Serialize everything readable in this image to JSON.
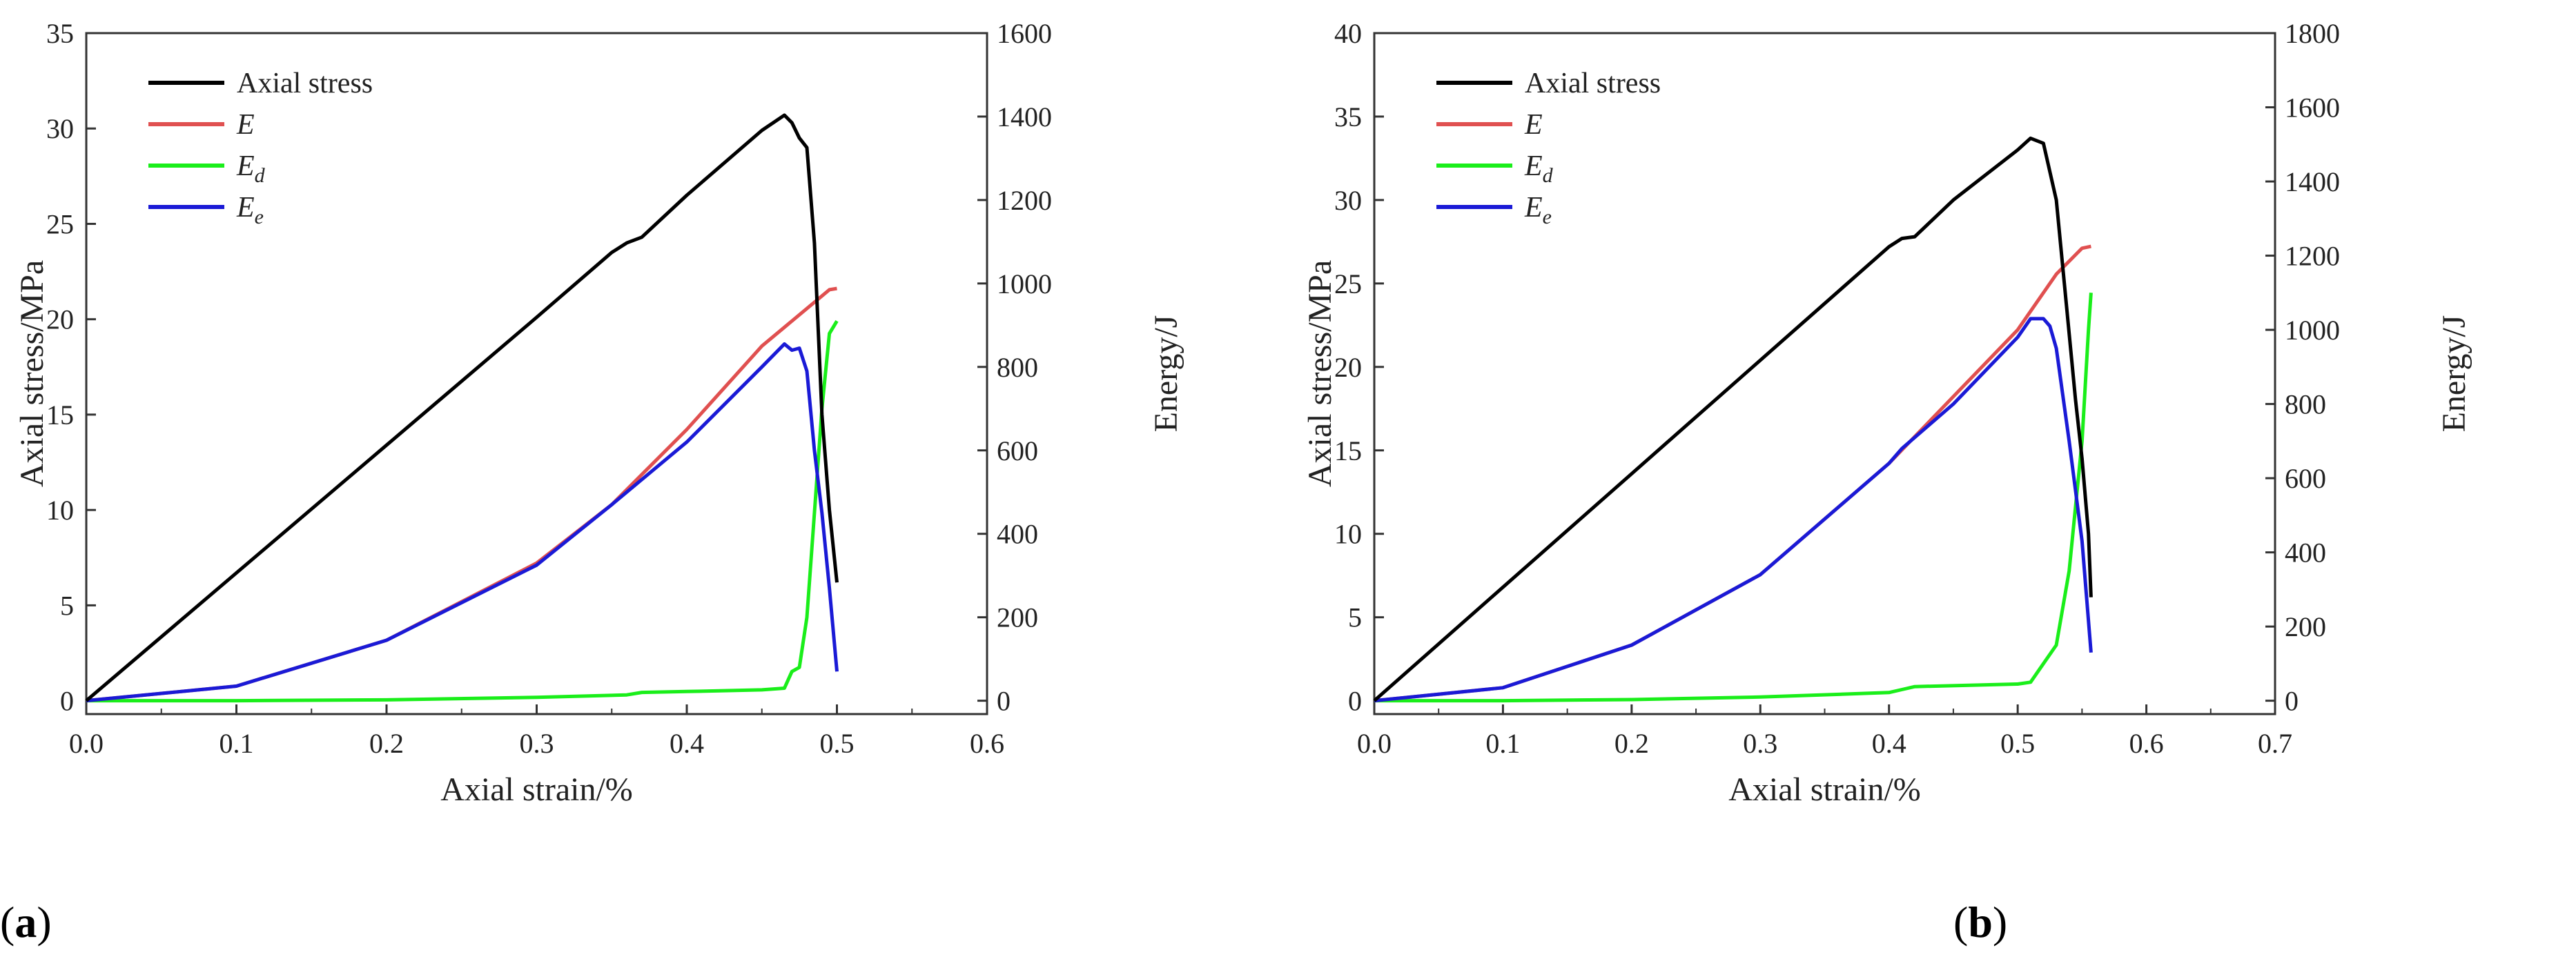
{
  "chart_data": [
    {
      "type": "line",
      "panel_label_open": "(",
      "panel_label": "a",
      "panel_label_close": ")",
      "xlabel": "Axial strain/%",
      "ylabel": "Axial stress/MPa",
      "y2label": "Energy/J",
      "xlim": [
        0,
        0.6
      ],
      "ylim": [
        -0.7,
        35
      ],
      "y2lim": [
        -32,
        1600
      ],
      "xticks": [
        "0.0",
        "0.1",
        "0.2",
        "0.3",
        "0.4",
        "0.5",
        "0.6"
      ],
      "yticks": [
        "0",
        "5",
        "10",
        "15",
        "20",
        "25",
        "30",
        "35"
      ],
      "y2ticks": [
        "0",
        "200",
        "400",
        "600",
        "800",
        "1000",
        "1200",
        "1400",
        "1600"
      ],
      "legend": {
        "position": "top-left",
        "entries": [
          "Axial stress",
          "E",
          "Ed",
          "Ee"
        ]
      },
      "series": [
        {
          "name": "Axial stress",
          "axis": "left",
          "color": "#000000",
          "x": [
            0,
            0.1,
            0.2,
            0.3,
            0.35,
            0.36,
            0.37,
            0.4,
            0.45,
            0.465,
            0.47,
            0.475,
            0.48,
            0.485,
            0.49,
            0.495,
            0.5
          ],
          "y": [
            0,
            6.7,
            13.4,
            20.1,
            23.5,
            24.0,
            24.3,
            26.5,
            29.9,
            30.7,
            30.3,
            29.5,
            29.0,
            24.0,
            15.0,
            10.0,
            6.2
          ]
        },
        {
          "name": "E",
          "axis": "right",
          "color": "#e05050",
          "x": [
            0,
            0.1,
            0.2,
            0.3,
            0.35,
            0.4,
            0.45,
            0.48,
            0.495,
            0.5
          ],
          "y": [
            0,
            35,
            145,
            330,
            470,
            650,
            850,
            940,
            985,
            988
          ]
        },
        {
          "name": "Ed",
          "axis": "right",
          "color": "#1aee1a",
          "x": [
            0,
            0.1,
            0.2,
            0.3,
            0.36,
            0.37,
            0.4,
            0.45,
            0.465,
            0.47,
            0.475,
            0.48,
            0.485,
            0.49,
            0.495,
            0.5
          ],
          "y": [
            0,
            0,
            2,
            8,
            14,
            20,
            22,
            26,
            30,
            70,
            80,
            200,
            450,
            700,
            880,
            910
          ]
        },
        {
          "name": "Ee",
          "axis": "right",
          "color": "#1a1ad6",
          "x": [
            0,
            0.1,
            0.2,
            0.3,
            0.35,
            0.4,
            0.45,
            0.465,
            0.47,
            0.475,
            0.48,
            0.485,
            0.49,
            0.495,
            0.5
          ],
          "y": [
            0,
            35,
            145,
            325,
            470,
            620,
            800,
            855,
            840,
            845,
            790,
            600,
            450,
            270,
            70
          ]
        }
      ]
    },
    {
      "type": "line",
      "panel_label_open": "(",
      "panel_label": "b",
      "panel_label_close": ")",
      "xlabel": "Axial strain/%",
      "ylabel": "Axial stress/MPa",
      "y2label": "Energy/J",
      "xlim": [
        0,
        0.7
      ],
      "ylim": [
        -0.8,
        40
      ],
      "y2lim": [
        -36,
        1800
      ],
      "xticks": [
        "0.0",
        "0.1",
        "0.2",
        "0.3",
        "0.4",
        "0.5",
        "0.6",
        "0.7"
      ],
      "yticks": [
        "0",
        "5",
        "10",
        "15",
        "20",
        "25",
        "30",
        "35",
        "40"
      ],
      "y2ticks": [
        "0",
        "200",
        "400",
        "600",
        "800",
        "1000",
        "1200",
        "1400",
        "1600",
        "1800"
      ],
      "legend": {
        "position": "top-left",
        "entries": [
          "Axial stress",
          "E",
          "Ed",
          "Ee"
        ]
      },
      "series": [
        {
          "name": "Axial stress",
          "axis": "left",
          "color": "#000000",
          "x": [
            0,
            0.1,
            0.2,
            0.3,
            0.4,
            0.41,
            0.42,
            0.45,
            0.5,
            0.51,
            0.52,
            0.53,
            0.54,
            0.545,
            0.55,
            0.555,
            0.557
          ],
          "y": [
            0,
            6.8,
            13.6,
            20.4,
            27.2,
            27.7,
            27.8,
            30.0,
            33.0,
            33.7,
            33.4,
            30.0,
            22.0,
            18.0,
            14.5,
            10.0,
            6.2
          ]
        },
        {
          "name": "E",
          "axis": "right",
          "color": "#e05050",
          "x": [
            0,
            0.1,
            0.2,
            0.3,
            0.4,
            0.45,
            0.5,
            0.53,
            0.55,
            0.557
          ],
          "y": [
            0,
            35,
            150,
            340,
            640,
            820,
            1000,
            1150,
            1220,
            1225
          ]
        },
        {
          "name": "Ed",
          "axis": "right",
          "color": "#1aee1a",
          "x": [
            0,
            0.1,
            0.2,
            0.3,
            0.4,
            0.41,
            0.42,
            0.5,
            0.51,
            0.52,
            0.53,
            0.54,
            0.55,
            0.555,
            0.557
          ],
          "y": [
            0,
            0,
            3,
            10,
            22,
            30,
            38,
            45,
            50,
            100,
            150,
            350,
            700,
            1000,
            1100
          ]
        },
        {
          "name": "Ee",
          "axis": "right",
          "color": "#1a1ad6",
          "x": [
            0,
            0.1,
            0.2,
            0.3,
            0.4,
            0.41,
            0.45,
            0.5,
            0.51,
            0.52,
            0.525,
            0.53,
            0.54,
            0.55,
            0.557
          ],
          "y": [
            0,
            35,
            150,
            340,
            640,
            680,
            800,
            980,
            1030,
            1030,
            1010,
            950,
            700,
            430,
            130
          ]
        }
      ]
    }
  ]
}
